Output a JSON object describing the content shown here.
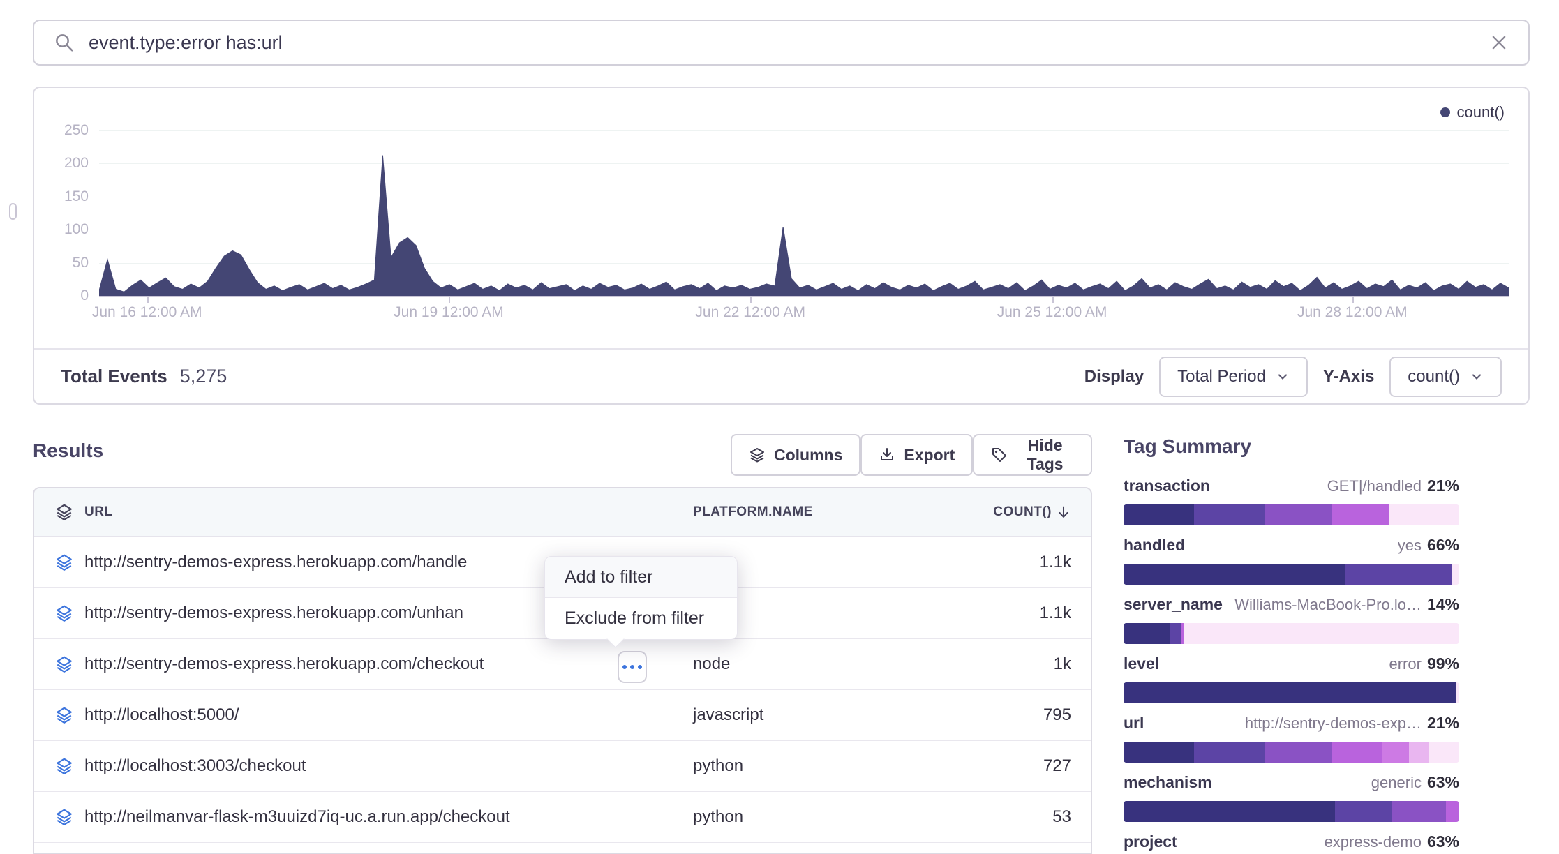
{
  "search": {
    "query": "event.type:error has:url"
  },
  "chart": {
    "legend": "count()",
    "total_events_label": "Total Events",
    "total_events_value": "5,275",
    "display_label": "Display",
    "display_value": "Total Period",
    "yaxis_label": "Y-Axis",
    "yaxis_value": "count()",
    "chart_data": {
      "type": "area",
      "title": "",
      "xlabel": "",
      "ylabel": "count()",
      "ylim": [
        0,
        260
      ],
      "yticks": [
        0,
        50,
        100,
        150,
        200,
        250
      ],
      "xticks": [
        "Jun 16 12:00 AM",
        "Jun 19 12:00 AM",
        "Jun 22 12:00 AM",
        "Jun 25 12:00 AM",
        "Jun 28 12:00 AM"
      ],
      "grid": "horizontal-faint",
      "legend_position": "top-right",
      "series": [
        {
          "name": "count()",
          "color": "#444674",
          "values": [
            8,
            55,
            10,
            6,
            16,
            24,
            12,
            20,
            27,
            14,
            10,
            18,
            12,
            22,
            42,
            60,
            68,
            62,
            40,
            20,
            10,
            15,
            8,
            13,
            17,
            9,
            14,
            19,
            11,
            16,
            9,
            13,
            18,
            24,
            212,
            58,
            80,
            88,
            76,
            42,
            22,
            12,
            17,
            9,
            14,
            19,
            10,
            15,
            8,
            18,
            12,
            16,
            9,
            20,
            11,
            14,
            17,
            8,
            15,
            10,
            19,
            13,
            16,
            9,
            12,
            18,
            10,
            15,
            21,
            9,
            14,
            17,
            11,
            19,
            8,
            15,
            12,
            16,
            10,
            13,
            18,
            15,
            104,
            26,
            12,
            16,
            9,
            14,
            19,
            10,
            15,
            8,
            17,
            11,
            20,
            13,
            9,
            16,
            12,
            18,
            8,
            14,
            19,
            10,
            15,
            22,
            9,
            13,
            17,
            11,
            20,
            8,
            15,
            24,
            10,
            16,
            12,
            19,
            9,
            14,
            18,
            11,
            22,
            8,
            15,
            26,
            12,
            17,
            9,
            20,
            14,
            10,
            18,
            25,
            11,
            15,
            9,
            21,
            13,
            17,
            10,
            23,
            14,
            19,
            8,
            16,
            28,
            12,
            20,
            10,
            15,
            22,
            11,
            18,
            14,
            24,
            9,
            16,
            12,
            20,
            8,
            15,
            18,
            10,
            22,
            13,
            17,
            9,
            19,
            12
          ]
        }
      ]
    }
  },
  "results": {
    "title": "Results",
    "buttons": [
      {
        "label": "Columns",
        "icon": "layers-icon"
      },
      {
        "label": "Export",
        "icon": "download-icon"
      },
      {
        "label": "Hide Tags",
        "icon": "tag-icon"
      }
    ],
    "table": {
      "columns": {
        "url": "URL",
        "platform": "PLATFORM.NAME",
        "count": "COUNT()"
      },
      "sort": {
        "column": "COUNT()",
        "direction": "desc"
      },
      "rows": [
        {
          "url": "http://sentry-demos-express.herokuapp.com/handle",
          "platform": "",
          "count": "1.1k"
        },
        {
          "url": "http://sentry-demos-express.herokuapp.com/unhan",
          "platform": "",
          "count": "1.1k"
        },
        {
          "url": "http://sentry-demos-express.herokuapp.com/checkout",
          "platform": "node",
          "count": "1k"
        },
        {
          "url": "http://localhost:5000/",
          "platform": "javascript",
          "count": "795"
        },
        {
          "url": "http://localhost:3003/checkout",
          "platform": "python",
          "count": "727"
        },
        {
          "url": "http://neilmanvar-flask-m3uuizd7iq-uc.a.run.app/checkout",
          "platform": "python",
          "count": "53"
        }
      ]
    },
    "context_menu": {
      "items": [
        "Add to filter",
        "Exclude from filter"
      ]
    }
  },
  "tag_summary": {
    "title": "Tag Summary",
    "tags": [
      {
        "name": "transaction",
        "value": "GET|/handled",
        "pct": "21%",
        "segments": [
          [
            "#38327e",
            21
          ],
          [
            "#5c44a5",
            21
          ],
          [
            "#8a52c4",
            20
          ],
          [
            "#b963dd",
            17
          ],
          [
            "#fae7f9",
            21
          ]
        ]
      },
      {
        "name": "handled",
        "value": "yes",
        "pct": "66%",
        "segments": [
          [
            "#38327e",
            66
          ],
          [
            "#5c44a5",
            32
          ],
          [
            "#fae7f9",
            2
          ]
        ]
      },
      {
        "name": "server_name",
        "value": "Williams-MacBook-Pro.lo…",
        "pct": "14%",
        "segments": [
          [
            "#38327e",
            14
          ],
          [
            "#5c44a5",
            3
          ],
          [
            "#b963dd",
            1
          ],
          [
            "#fae7f9",
            82
          ]
        ]
      },
      {
        "name": "level",
        "value": "error",
        "pct": "99%",
        "segments": [
          [
            "#38327e",
            99
          ],
          [
            "#fae7f9",
            1
          ]
        ]
      },
      {
        "name": "url",
        "value": "http://sentry-demos-exp…",
        "pct": "21%",
        "segments": [
          [
            "#38327e",
            21
          ],
          [
            "#5c44a5",
            21
          ],
          [
            "#8a52c4",
            20
          ],
          [
            "#b963dd",
            15
          ],
          [
            "#cd7ae4",
            8
          ],
          [
            "#e9b6f0",
            6
          ],
          [
            "#fae7f9",
            9
          ]
        ]
      },
      {
        "name": "mechanism",
        "value": "generic",
        "pct": "63%",
        "segments": [
          [
            "#38327e",
            63
          ],
          [
            "#5c44a5",
            17
          ],
          [
            "#8a52c4",
            16
          ],
          [
            "#b963dd",
            4
          ]
        ]
      },
      {
        "name": "project",
        "value": "express-demo",
        "pct": "63%",
        "segments": []
      }
    ]
  },
  "colors": {
    "chart_fill": "#444674",
    "accent_blue": "#3c74dd",
    "bar_dark": "#38327e",
    "bar_light": "#fae7f9"
  }
}
